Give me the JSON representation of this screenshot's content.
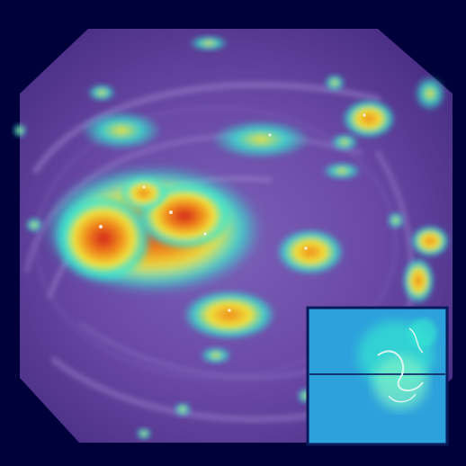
{
  "image": {
    "subject": "endoscopy-frame-with-attention-heatmap-overlay",
    "colors": {
      "background": "#00003a",
      "tissue_dark": "#4b2f86",
      "tissue_mid": "#6a49a6",
      "tissue_light": "#8f74c4",
      "heat_cyan": "#35e6d2",
      "heat_yellow": "#f1e23a",
      "heat_orange": "#f08a1c",
      "heat_red": "#d3241b",
      "inset_fill": "#2aa0d8",
      "inset_border": "#0a1a5a"
    }
  }
}
